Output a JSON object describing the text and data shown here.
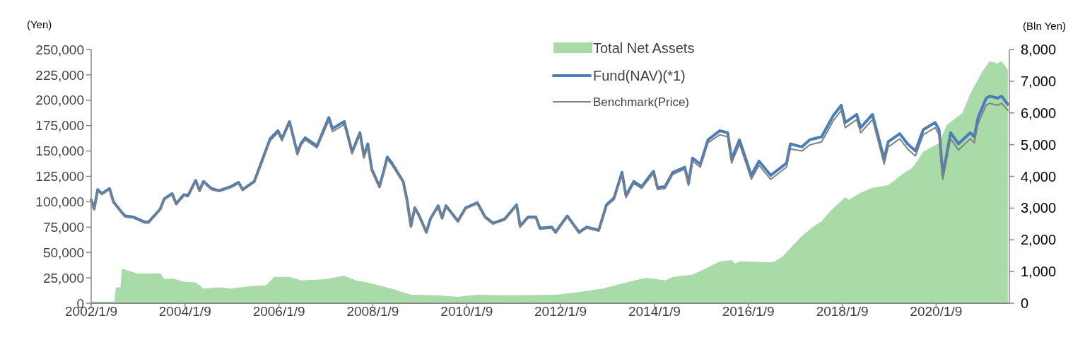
{
  "chart_data": {
    "type": "line",
    "ylabel": "(Yen)",
    "y2label": "(Bln Yen)",
    "legend": "top",
    "grid": false,
    "xlim": [
      "2002-01-09",
      "2021-08-01"
    ],
    "xticks": [
      {
        "value": "2002-01-09",
        "label": "2002/1/9"
      },
      {
        "value": "2004-01-09",
        "label": "2004/1/9"
      },
      {
        "value": "2006-01-09",
        "label": "2006/1/9"
      },
      {
        "value": "2008-01-09",
        "label": "2008/1/9"
      },
      {
        "value": "2010-01-09",
        "label": "2010/1/9"
      },
      {
        "value": "2012-01-09",
        "label": "2012/1/9"
      },
      {
        "value": "2014-01-09",
        "label": "2014/1/9"
      },
      {
        "value": "2016-01-09",
        "label": "2016/1/9"
      },
      {
        "value": "2018-01-09",
        "label": "2018/1/9"
      },
      {
        "value": "2020-01-09",
        "label": "2020/1/9"
      }
    ],
    "ylim": [
      0,
      250000
    ],
    "yticks": [
      {
        "value": 0,
        "label": "0"
      },
      {
        "value": 25000,
        "label": "25,000"
      },
      {
        "value": 50000,
        "label": "50,000"
      },
      {
        "value": 75000,
        "label": "75,000"
      },
      {
        "value": 100000,
        "label": "100,000"
      },
      {
        "value": 125000,
        "label": "125,000"
      },
      {
        "value": 150000,
        "label": "150,000"
      },
      {
        "value": 175000,
        "label": "175,000"
      },
      {
        "value": 200000,
        "label": "200,000"
      },
      {
        "value": 225000,
        "label": "225,000"
      },
      {
        "value": 250000,
        "label": "250,000"
      }
    ],
    "y2lim": [
      0,
      8000
    ],
    "y2ticks": [
      {
        "value": 0,
        "label": "0"
      },
      {
        "value": 1000,
        "label": "1,000"
      },
      {
        "value": 2000,
        "label": "2,000"
      },
      {
        "value": 3000,
        "label": "3,000"
      },
      {
        "value": 4000,
        "label": "4,000"
      },
      {
        "value": 5000,
        "label": "5,000"
      },
      {
        "value": 6000,
        "label": "6,000"
      },
      {
        "value": 7000,
        "label": "7,000"
      },
      {
        "value": 8000,
        "label": "8,000"
      }
    ],
    "series": [
      {
        "name": "Total Net Assets",
        "type": "area",
        "axis": "y2",
        "color": "#a9dba9",
        "x": [
          "2002-01-09",
          "2002-07-10",
          "2002-07-20",
          "2002-08-25",
          "2002-09-05",
          "2003-01",
          "2003-07",
          "2003-08",
          "2003-10",
          "2004-01",
          "2004-04",
          "2004-06",
          "2004-10",
          "2005-01",
          "2005-06",
          "2005-10",
          "2005-12",
          "2006-04",
          "2006-07",
          "2007-01",
          "2007-06",
          "2007-09",
          "2007-12",
          "2008-06",
          "2008-11",
          "2009-06",
          "2009-11",
          "2010-04",
          "2010-12",
          "2011-12",
          "2012-06",
          "2012-12",
          "2013-06",
          "2013-11",
          "2014-04",
          "2014-06",
          "2014-11",
          "2015-03",
          "2015-06",
          "2015-09",
          "2015-10",
          "2015-11",
          "2016-07",
          "2016-08",
          "2016-10",
          "2016-12",
          "2017-03",
          "2017-06",
          "2017-08",
          "2017-10",
          "2018-02",
          "2018-03",
          "2018-06",
          "2018-09",
          "2019-01",
          "2019-05",
          "2019-07",
          "2019-08",
          "2019-10",
          "2020-02",
          "2020-04",
          "2020-08",
          "2020-10",
          "2021-01",
          "2021-03",
          "2021-05",
          "2021-06",
          "2021-07-20"
        ],
        "values": [
          50,
          50,
          500,
          500,
          1090,
          940,
          940,
          760,
          780,
          680,
          660,
          460,
          500,
          460,
          540,
          560,
          830,
          830,
          720,
          760,
          870,
          720,
          650,
          460,
          270,
          250,
          200,
          270,
          250,
          270,
          350,
          460,
          650,
          800,
          720,
          830,
          900,
          1130,
          1320,
          1360,
          1250,
          1320,
          1290,
          1320,
          1470,
          1740,
          2120,
          2430,
          2580,
          2880,
          3340,
          3260,
          3490,
          3640,
          3720,
          4100,
          4250,
          4400,
          4780,
          5050,
          5620,
          6000,
          6610,
          7290,
          7630,
          7560,
          7630,
          7370
        ]
      },
      {
        "name": "Fund(NAV)(*1)",
        "color": "#4a7ebb",
        "x": [
          "2002-01-09",
          "2002-02",
          "2002-03",
          "2002-04",
          "2002-06",
          "2002-07",
          "2002-09",
          "2002-10",
          "2002-12",
          "2003-03",
          "2003-04",
          "2003-07",
          "2003-08",
          "2003-10",
          "2003-11",
          "2004-01",
          "2004-02",
          "2004-04",
          "2004-05",
          "2004-06",
          "2004-08",
          "2004-10",
          "2005-01",
          "2005-03",
          "2005-04",
          "2005-07",
          "2005-09",
          "2005-11",
          "2006-01",
          "2006-02",
          "2006-04",
          "2006-06",
          "2006-07",
          "2006-08",
          "2006-11",
          "2007-02",
          "2007-03",
          "2007-06",
          "2007-08",
          "2007-10",
          "2007-11",
          "2007-12",
          "2008-01",
          "2008-03",
          "2008-04",
          "2008-05",
          "2008-06",
          "2008-09",
          "2008-10",
          "2008-11",
          "2008-12",
          "2009-01",
          "2009-03",
          "2009-04",
          "2009-06",
          "2009-07",
          "2009-08",
          "2009-11",
          "2010-01",
          "2010-04",
          "2010-06",
          "2010-08",
          "2010-11",
          "2011-02",
          "2011-03",
          "2011-05",
          "2011-07",
          "2011-08",
          "2011-11",
          "2011-12",
          "2012-03",
          "2012-06",
          "2012-08",
          "2012-11",
          "2013-01",
          "2013-03",
          "2013-05",
          "2013-06",
          "2013-08",
          "2013-10",
          "2014-01",
          "2014-02",
          "2014-04",
          "2014-06",
          "2014-09",
          "2014-10",
          "2014-11",
          "2015-01",
          "2015-03",
          "2015-06",
          "2015-08",
          "2015-09",
          "2015-11",
          "2016-02",
          "2016-04",
          "2016-07",
          "2016-11",
          "2016-12",
          "2017-03",
          "2017-05",
          "2017-08",
          "2017-11",
          "2018-01",
          "2018-02",
          "2018-05",
          "2018-06",
          "2018-09",
          "2018-12",
          "2019-01",
          "2019-04",
          "2019-06",
          "2019-08",
          "2019-10",
          "2020-01",
          "2020-02",
          "2020-03",
          "2020-04",
          "2020-05",
          "2020-07",
          "2020-10",
          "2020-11",
          "2020-12",
          "2021-02",
          "2021-03",
          "2021-05",
          "2021-06",
          "2021-07-20"
        ],
        "values": [
          102000,
          93000,
          112000,
          108000,
          113000,
          100000,
          90000,
          86000,
          85000,
          80000,
          80000,
          93000,
          103000,
          108000,
          98000,
          107000,
          106000,
          121000,
          111000,
          120000,
          113000,
          111000,
          115000,
          119000,
          112000,
          120000,
          141000,
          162000,
          170000,
          162000,
          179000,
          148000,
          158000,
          163000,
          155000,
          183000,
          172000,
          179000,
          149000,
          168000,
          145000,
          157000,
          132000,
          115000,
          129000,
          144000,
          139000,
          120000,
          102000,
          76000,
          94000,
          87000,
          70000,
          83000,
          96000,
          84000,
          96000,
          81000,
          94000,
          99000,
          85000,
          79000,
          83000,
          97000,
          76000,
          85000,
          85000,
          74000,
          75000,
          70000,
          86000,
          70000,
          75000,
          72000,
          97000,
          104000,
          129000,
          106000,
          120000,
          115000,
          130000,
          114000,
          115000,
          129000,
          134000,
          118000,
          143000,
          137000,
          161000,
          170000,
          168000,
          142000,
          161000,
          126000,
          140000,
          126000,
          138000,
          157000,
          154000,
          161000,
          164000,
          185000,
          195000,
          178000,
          186000,
          173000,
          186000,
          142000,
          159000,
          167000,
          157000,
          150000,
          171000,
          178000,
          171000,
          126000,
          147000,
          168000,
          157000,
          168000,
          164000,
          183000,
          202000,
          204000,
          202000,
          204000,
          196000
        ]
      },
      {
        "name": "Benchmark(Price)",
        "color": "#808080",
        "x": [
          "2002-01-09",
          "2002-02",
          "2002-03",
          "2002-04",
          "2002-06",
          "2002-07",
          "2002-09",
          "2002-10",
          "2002-12",
          "2003-03",
          "2003-04",
          "2003-07",
          "2003-08",
          "2003-10",
          "2003-11",
          "2004-01",
          "2004-02",
          "2004-04",
          "2004-05",
          "2004-06",
          "2004-08",
          "2004-10",
          "2005-01",
          "2005-03",
          "2005-04",
          "2005-07",
          "2005-09",
          "2005-11",
          "2006-01",
          "2006-02",
          "2006-04",
          "2006-06",
          "2006-07",
          "2006-08",
          "2006-11",
          "2007-02",
          "2007-03",
          "2007-06",
          "2007-08",
          "2007-10",
          "2007-11",
          "2007-12",
          "2008-01",
          "2008-03",
          "2008-04",
          "2008-05",
          "2008-06",
          "2008-09",
          "2008-10",
          "2008-11",
          "2008-12",
          "2009-01",
          "2009-03",
          "2009-04",
          "2009-06",
          "2009-07",
          "2009-08",
          "2009-11",
          "2010-01",
          "2010-04",
          "2010-06",
          "2010-08",
          "2010-11",
          "2011-02",
          "2011-03",
          "2011-05",
          "2011-07",
          "2011-08",
          "2011-11",
          "2011-12",
          "2012-03",
          "2012-06",
          "2012-08",
          "2012-11",
          "2013-01",
          "2013-03",
          "2013-05",
          "2013-06",
          "2013-08",
          "2013-10",
          "2014-01",
          "2014-02",
          "2014-04",
          "2014-06",
          "2014-09",
          "2014-10",
          "2014-11",
          "2015-01",
          "2015-03",
          "2015-06",
          "2015-08",
          "2015-09",
          "2015-11",
          "2016-02",
          "2016-04",
          "2016-07",
          "2016-11",
          "2016-12",
          "2017-03",
          "2017-05",
          "2017-08",
          "2017-11",
          "2018-01",
          "2018-02",
          "2018-05",
          "2018-06",
          "2018-09",
          "2018-12",
          "2019-01",
          "2019-04",
          "2019-06",
          "2019-08",
          "2019-10",
          "2020-01",
          "2020-02",
          "2020-03",
          "2020-04",
          "2020-05",
          "2020-07",
          "2020-10",
          "2020-11",
          "2020-12",
          "2021-02",
          "2021-03",
          "2021-05",
          "2021-06",
          "2021-07-20"
        ],
        "values": [
          101000,
          92000,
          111000,
          107000,
          112000,
          99000,
          89000,
          85000,
          84000,
          79000,
          79000,
          92000,
          102000,
          107000,
          97000,
          106000,
          105000,
          120000,
          110000,
          119000,
          112000,
          110000,
          114000,
          118000,
          111000,
          119000,
          139000,
          160000,
          168000,
          160000,
          177000,
          146000,
          156000,
          161000,
          153000,
          180000,
          169000,
          176000,
          147000,
          166000,
          143000,
          155000,
          130000,
          114000,
          127000,
          142000,
          137000,
          119000,
          101000,
          75000,
          93000,
          86000,
          69000,
          82000,
          95000,
          83000,
          95000,
          80000,
          93000,
          98000,
          84000,
          78000,
          82000,
          96000,
          75000,
          84000,
          84000,
          73000,
          74000,
          69000,
          85000,
          69000,
          74000,
          71000,
          96000,
          102000,
          127000,
          104000,
          118000,
          113000,
          128000,
          112000,
          113000,
          127000,
          132000,
          116000,
          140000,
          134000,
          158000,
          166000,
          164000,
          138000,
          157000,
          122000,
          136000,
          122000,
          134000,
          152000,
          150000,
          156000,
          159000,
          180000,
          190000,
          173000,
          181000,
          168000,
          181000,
          137000,
          154000,
          162000,
          152000,
          145000,
          166000,
          173000,
          166000,
          122000,
          142000,
          162000,
          151000,
          162000,
          158000,
          177000,
          195000,
          197000,
          195000,
          197000,
          190000
        ]
      }
    ]
  }
}
